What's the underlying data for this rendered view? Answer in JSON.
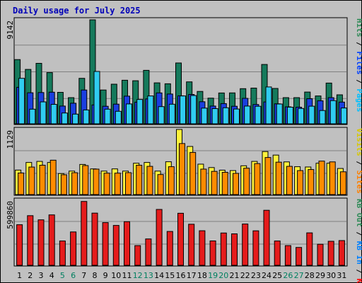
{
  "chart_data": {
    "type": "bar",
    "title": "Daily usage for July 2025",
    "categories": [
      "1",
      "2",
      "3",
      "4",
      "5",
      "6",
      "7",
      "8",
      "9",
      "10",
      "11",
      "12",
      "13",
      "14",
      "15",
      "16",
      "17",
      "18",
      "19",
      "20",
      "21",
      "22",
      "23",
      "24",
      "25",
      "26",
      "27",
      "28",
      "29",
      "30",
      "31"
    ],
    "weekend_days": [
      "5",
      "6",
      "12",
      "13",
      "19",
      "20",
      "26",
      "27"
    ],
    "panels": [
      {
        "name": "hits-files-pages",
        "ymax": 9142,
        "ymax_label": "9142",
        "axis_labels": [
          {
            "text": "Hits",
            "color": "#2e8b57"
          },
          {
            "text": "Files",
            "color": "#0040ff"
          },
          {
            "text": "Pages",
            "color": "#00c0ff"
          }
        ],
        "series": [
          {
            "name": "Hits",
            "color": "#157a5c",
            "values": [
              5650,
              4780,
              5320,
              4500,
              2770,
              2300,
              4000,
              9142,
              2970,
              3480,
              3830,
              3790,
              4700,
              3600,
              3520,
              5350,
              3690,
              2850,
              2260,
              2710,
              2720,
              3090,
              3140,
              5220,
              3110,
              2300,
              2300,
              2790,
              2450,
              3580,
              2550
            ]
          },
          {
            "name": "Files",
            "color": "#1a3fe0",
            "values": [
              3210,
              2730,
              2750,
              2780,
              1560,
              1810,
              2970,
              1660,
              1540,
              1730,
              2430,
              1900,
              2190,
              2720,
              2620,
              2460,
              2580,
              1940,
              1560,
              1780,
              1540,
              2240,
              1700,
              1920,
              1760,
              1490,
              1460,
              2210,
              2030,
              2300,
              1910
            ]
          },
          {
            "name": "Pages",
            "color": "#30ccf0",
            "values": [
              4000,
              1290,
              1930,
              1710,
              950,
              850,
              1220,
              4600,
              1290,
              1100,
              1750,
              2140,
              2450,
              1510,
              1720,
              2450,
              2490,
              1380,
              1340,
              1410,
              1300,
              1560,
              1540,
              3240,
              1740,
              1460,
              1350,
              1550,
              1170,
              2040,
              1390
            ]
          }
        ]
      },
      {
        "name": "visits-sites",
        "ymax": 1129,
        "ymax_label": "1129",
        "axis_labels": [
          {
            "text": "Visits",
            "color": "#d8c800"
          },
          {
            "text": "Sites",
            "color": "#ff8000"
          }
        ],
        "series": [
          {
            "name": "Visits",
            "color": "#fff23c",
            "values": [
              425,
              557,
              575,
              557,
              364,
              408,
              523,
              446,
              408,
              446,
              408,
              544,
              557,
              407,
              570,
              1129,
              834,
              528,
              469,
              423,
              416,
              500,
              575,
              746,
              685,
              567,
              483,
              479,
              544,
              544,
              453
            ]
          },
          {
            "name": "Sites",
            "color": "#ff8c00",
            "values": [
              374,
              477,
              509,
              596,
              343,
              379,
              503,
              442,
              372,
              372,
              380,
              509,
              490,
              347,
              483,
              885,
              732,
              442,
              403,
              387,
              368,
              458,
              538,
              643,
              562,
              490,
              416,
              435,
              581,
              567,
              395
            ]
          }
        ]
      },
      {
        "name": "kbf-kbin-kbout",
        "ymax": 599860,
        "ymax_label": "599860",
        "axis_labels": [
          {
            "text": "KB Out",
            "color": "#2e8b57"
          },
          {
            "text": "KB In",
            "color": "#0080ff"
          },
          {
            "text": "KB F",
            "color": "#ff0000"
          }
        ],
        "series": [
          {
            "name": "KB F",
            "color": "#e51c1c",
            "values": [
              374000,
              458000,
              419000,
              465000,
              224000,
              308000,
              589000,
              481000,
              394000,
              368000,
              402000,
              182000,
              243000,
              515000,
              312000,
              480000,
              379000,
              319000,
              225000,
              298000,
              290000,
              381000,
              318000,
              507000,
              224000,
              182000,
              165000,
              299000,
              194000,
              222000,
              228000
            ]
          }
        ]
      }
    ]
  }
}
